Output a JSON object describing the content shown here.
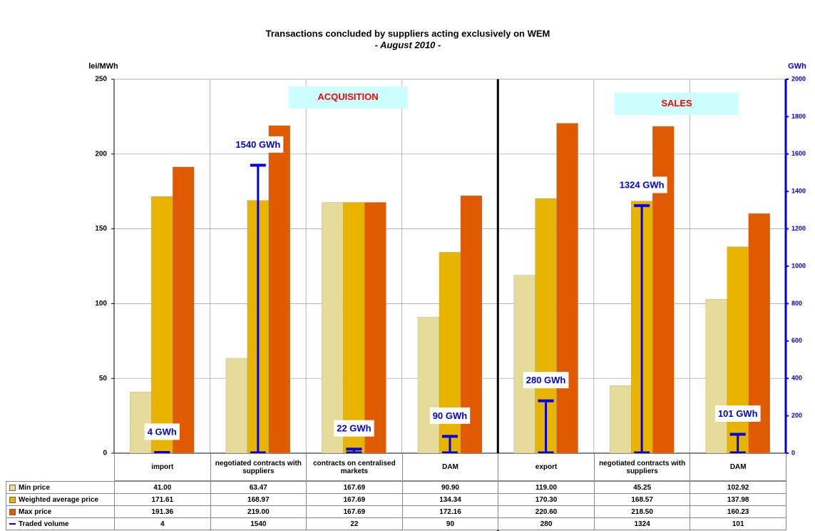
{
  "chart_data": {
    "type": "bar",
    "title": "Transactions concluded by suppliers acting exclusively on WEM",
    "subtitle": "- August 2010 -",
    "y_label": "lei/MWh",
    "y2_label": "GWh",
    "annotations": [
      "ACQUISITION",
      "SALES"
    ],
    "categories": [
      "import",
      "negotiated contracts with suppliers",
      "contracts on centralised markets",
      "DAM",
      "export",
      "negotiated contracts with suppliers",
      "DAM"
    ],
    "series": [
      {
        "name": "Min price",
        "color": "#e6dc9a",
        "values": [
          41,
          63.47,
          167.69,
          90.9,
          119,
          45.25,
          102.92
        ],
        "value_labels": [
          "41.00",
          "63.47",
          "167.69",
          "90.90",
          "119.00",
          "45.25",
          "102.92"
        ]
      },
      {
        "name": "Weighted average price",
        "color": "#e8b400",
        "values": [
          171.61,
          168.97,
          167.69,
          134.34,
          170.3,
          168.57,
          137.98
        ],
        "value_labels": [
          "171.61",
          "168.97",
          "167.69",
          "134.34",
          "170.30",
          "168.57",
          "137.98"
        ]
      },
      {
        "name": "Max price",
        "color": "#e05a00",
        "values": [
          191.36,
          219,
          167.69,
          172.16,
          220.6,
          218.5,
          160.23
        ],
        "value_labels": [
          "191.36",
          "219.00",
          "167.69",
          "172.16",
          "220.60",
          "218.50",
          "160.23"
        ]
      },
      {
        "name": "Traded volume",
        "color": "#0000e0",
        "axis": "y2",
        "values": [
          4,
          1540,
          22,
          90,
          280,
          1324,
          101
        ],
        "value_labels": [
          "4 GWh",
          "1540 GWh",
          "22 GWh",
          "90 GWh",
          "280 GWh",
          "1324 GWh",
          "101 GWh"
        ]
      }
    ],
    "ylim": [
      0,
      250
    ],
    "yticks": [
      0,
      50,
      100,
      150,
      200,
      250
    ],
    "y2lim": [
      0,
      2000
    ],
    "y2ticks": [
      0,
      200,
      400,
      600,
      800,
      1000,
      1200,
      1400,
      1600,
      1800,
      2000
    ],
    "grid": true
  }
}
